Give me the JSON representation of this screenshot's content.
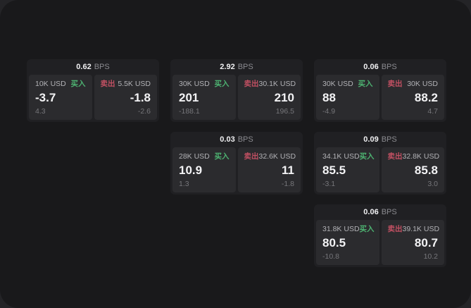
{
  "colors": {
    "buy_green": "#4db271",
    "sell_red": "#c15062",
    "window_bg": "#19191b",
    "card_bg": "#202023",
    "panel_bg": "#2b2b2e"
  },
  "labels": {
    "bps": "BPS",
    "buy": "买入",
    "sell": "卖出"
  },
  "columns": [
    {
      "cards": [
        {
          "bps": "0.62",
          "buy": {
            "amount": "10K USD",
            "price": "-3.7",
            "change": "4.3"
          },
          "sell": {
            "amount": "5.5K USD",
            "price": "-1.8",
            "change": "-2.6"
          }
        }
      ]
    },
    {
      "cards": [
        {
          "bps": "2.92",
          "buy": {
            "amount": "30K USD",
            "price": "201",
            "change": "-188.1"
          },
          "sell": {
            "amount": "30.1K USD",
            "price": "210",
            "change": "196.5"
          }
        },
        {
          "bps": "0.03",
          "buy": {
            "amount": "28K USD",
            "price": "10.9",
            "change": "1.3"
          },
          "sell": {
            "amount": "32.6K USD",
            "price": "11",
            "change": "-1.8"
          }
        }
      ]
    },
    {
      "cards": [
        {
          "bps": "0.06",
          "buy": {
            "amount": "30K USD",
            "price": "88",
            "change": "-4.9"
          },
          "sell": {
            "amount": "30K USD",
            "price": "88.2",
            "change": "4.7"
          }
        },
        {
          "bps": "0.09",
          "buy": {
            "amount": "34.1K USD",
            "price": "85.5",
            "change": "-3.1"
          },
          "sell": {
            "amount": "32.8K USD",
            "price": "85.8",
            "change": "3.0"
          }
        },
        {
          "bps": "0.06",
          "buy": {
            "amount": "31.8K USD",
            "price": "80.5",
            "change": "-10.8"
          },
          "sell": {
            "amount": "39.1K USD",
            "price": "80.7",
            "change": "10.2"
          }
        }
      ]
    }
  ]
}
